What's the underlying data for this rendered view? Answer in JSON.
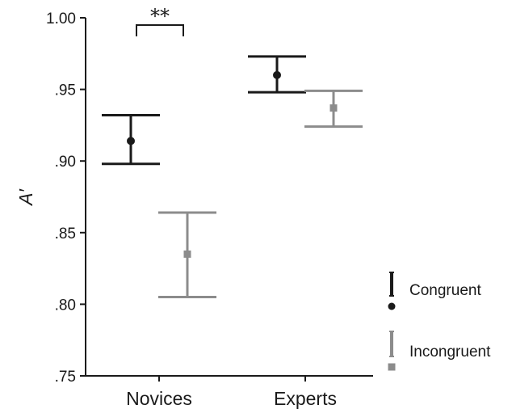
{
  "chart_data": {
    "type": "scatter",
    "ylabel": "A′",
    "ylim": [
      0.75,
      1.0
    ],
    "yticks": [
      {
        "value": 1.0,
        "label": "1.00"
      },
      {
        "value": 0.95,
        "label": ".95"
      },
      {
        "value": 0.9,
        "label": ".90"
      },
      {
        "value": 0.85,
        "label": ".85"
      },
      {
        "value": 0.8,
        "label": ".80"
      },
      {
        "value": 0.75,
        "label": ".75"
      }
    ],
    "categories": [
      "Novices",
      "Experts"
    ],
    "series": [
      {
        "name": "Congruent",
        "color": "#1a1a1a",
        "marker": "circle",
        "values": [
          0.914,
          0.96
        ],
        "lower": [
          0.898,
          0.948
        ],
        "upper": [
          0.932,
          0.973
        ]
      },
      {
        "name": "Incongruent",
        "color": "#8c8c8c",
        "marker": "square",
        "values": [
          0.835,
          0.937
        ],
        "lower": [
          0.805,
          0.924
        ],
        "upper": [
          0.864,
          0.949
        ]
      }
    ],
    "annotations": [
      {
        "text": "**",
        "category": "Novices",
        "meaning": "significance bracket between Congruent and Incongruent"
      }
    ],
    "legend": "right",
    "grid": false
  }
}
